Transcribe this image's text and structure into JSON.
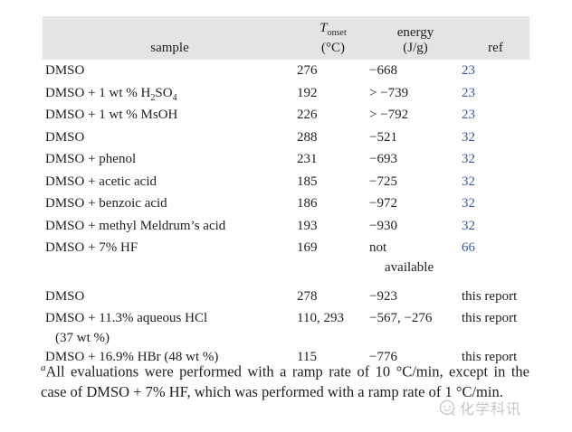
{
  "table": {
    "headers": {
      "sample": "sample",
      "t_onset": {
        "symbol": "T",
        "sub": "onset",
        "unit": "(°C)"
      },
      "energy": {
        "line1": "energy",
        "line2": "(J/g)"
      },
      "ref": "ref"
    },
    "rows": [
      {
        "sample": [
          {
            "t": "DMSO"
          }
        ],
        "t_onset": "276",
        "energy": "−668",
        "ref": "23",
        "ref_link": true
      },
      {
        "sample": [
          {
            "t": "DMSO + 1 wt % H"
          },
          {
            "t": "2",
            "sub": true
          },
          {
            "t": "SO"
          },
          {
            "t": "4",
            "sub": true
          }
        ],
        "t_onset": "192",
        "energy": "> −739",
        "ref": "23",
        "ref_link": true
      },
      {
        "sample": [
          {
            "t": "DMSO + 1 wt % MsOH"
          }
        ],
        "t_onset": "226",
        "energy": "> −792",
        "ref": "23",
        "ref_link": true
      },
      {
        "sample": [
          {
            "t": "DMSO"
          }
        ],
        "t_onset": "288",
        "energy": "−521",
        "ref": "32",
        "ref_link": true
      },
      {
        "sample": [
          {
            "t": "DMSO + phenol"
          }
        ],
        "t_onset": "231",
        "energy": "−693",
        "ref": "32",
        "ref_link": true
      },
      {
        "sample": [
          {
            "t": "DMSO + acetic acid"
          }
        ],
        "t_onset": "185",
        "energy": "−725",
        "ref": "32",
        "ref_link": true
      },
      {
        "sample": [
          {
            "t": "DMSO + benzoic acid"
          }
        ],
        "t_onset": "186",
        "energy": "−972",
        "ref": "32",
        "ref_link": true
      },
      {
        "sample": [
          {
            "t": "DMSO + methyl Meldrum’s acid"
          }
        ],
        "t_onset": "193",
        "energy": "−930",
        "ref": "32",
        "ref_link": true
      },
      {
        "sample": [
          {
            "t": "DMSO + 7% HF"
          }
        ],
        "t_onset": "169",
        "energy": "not",
        "energy_line2": "available",
        "ref": "66",
        "ref_link": true
      },
      {
        "sample": [
          {
            "t": "DMSO"
          }
        ],
        "t_onset": "278",
        "energy": "−923",
        "ref": "this report",
        "ref_link": false,
        "gap_before": true
      },
      {
        "sample": [
          {
            "t": "DMSO + 11.3% aqueous HCl"
          }
        ],
        "sample_line2": "(37 wt %)",
        "t_onset": "110, 293",
        "energy": "−567, −276",
        "ref": "this report",
        "ref_link": false
      },
      {
        "sample": [
          {
            "t": "DMSO + 16.9% HBr (48 wt %)"
          }
        ],
        "t_onset": "115",
        "energy": "−776",
        "ref": "this report",
        "ref_link": false
      }
    ]
  },
  "footnote": {
    "marker": "a",
    "text": "All evaluations were performed with a ramp rate of 10 °C/min, except in the case of DMSO + 7% HF, which was performed with a ramp rate of 1 °C/min."
  },
  "watermark": {
    "text": "化学科讯"
  }
}
